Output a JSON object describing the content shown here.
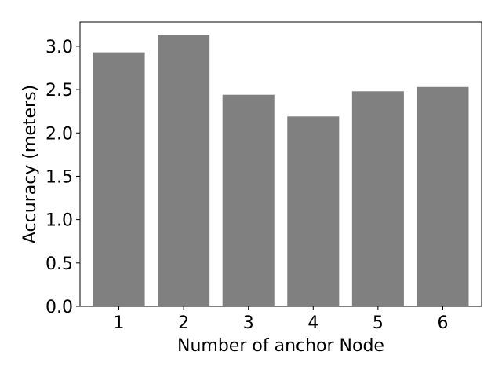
{
  "chart_data": {
    "type": "bar",
    "categories": [
      "1",
      "2",
      "3",
      "4",
      "5",
      "6"
    ],
    "values": [
      2.93,
      3.13,
      2.44,
      2.19,
      2.48,
      2.53
    ],
    "xlabel": "Number of anchor Node",
    "ylabel": "Accuracy (meters)",
    "ylim": [
      0,
      3.28
    ],
    "yticks": [
      "0.0",
      "0.5",
      "1.0",
      "1.5",
      "2.0",
      "2.5",
      "3.0"
    ],
    "grid": false,
    "bar_color": "#808080"
  }
}
